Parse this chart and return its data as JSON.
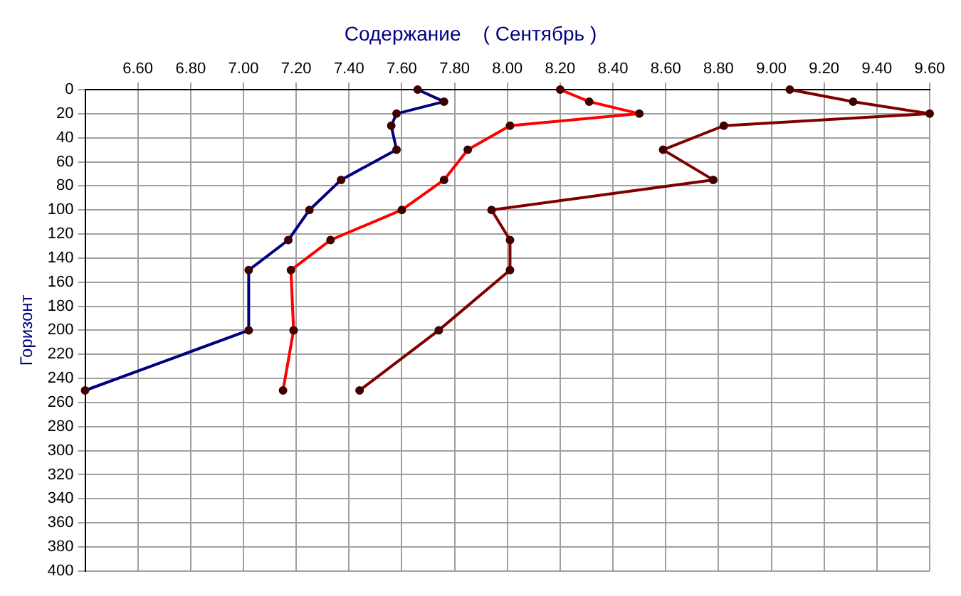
{
  "chart_data": {
    "type": "line",
    "title": "Содержание    ( Сентябрь )",
    "ylabel": "Горизонт",
    "xlim": [
      6.4,
      9.6
    ],
    "xticks": [
      {
        "value": 6.6,
        "label": "6.60"
      },
      {
        "value": 6.8,
        "label": "6.80"
      },
      {
        "value": 7.0,
        "label": "7.00"
      },
      {
        "value": 7.2,
        "label": "7.20"
      },
      {
        "value": 7.4,
        "label": "7.40"
      },
      {
        "value": 7.6,
        "label": "7.60"
      },
      {
        "value": 7.8,
        "label": "7.80"
      },
      {
        "value": 8.0,
        "label": "8.00"
      },
      {
        "value": 8.2,
        "label": "8.20"
      },
      {
        "value": 8.4,
        "label": "8.40"
      },
      {
        "value": 8.6,
        "label": "8.60"
      },
      {
        "value": 8.8,
        "label": "8.80"
      },
      {
        "value": 9.0,
        "label": "9.00"
      },
      {
        "value": 9.2,
        "label": "9.20"
      },
      {
        "value": 9.4,
        "label": "9.40"
      },
      {
        "value": 9.6,
        "label": "9.60"
      }
    ],
    "ylim": [
      400,
      0
    ],
    "yticks": [
      0,
      20,
      40,
      60,
      80,
      100,
      120,
      140,
      160,
      180,
      200,
      220,
      240,
      260,
      280,
      300,
      320,
      340,
      360,
      380,
      400
    ],
    "grid": true,
    "legend": false,
    "marker": "circle",
    "line_style": "solid",
    "series": [
      {
        "color": "#000080",
        "x": [
          7.66,
          7.76,
          7.58,
          7.56,
          7.58,
          7.37,
          7.25,
          7.17,
          7.02,
          7.02,
          6.4
        ],
        "values": [
          0,
          10,
          20,
          30,
          50,
          75,
          100,
          125,
          150,
          200,
          250
        ]
      },
      {
        "color": "#ff0000",
        "x": [
          8.2,
          8.31,
          8.5,
          8.01,
          7.85,
          7.76,
          7.6,
          7.33,
          7.18,
          7.19,
          7.15
        ],
        "values": [
          0,
          10,
          20,
          30,
          50,
          75,
          100,
          125,
          150,
          200,
          250
        ]
      },
      {
        "color": "#800000",
        "x": [
          9.07,
          9.31,
          9.6,
          8.82,
          8.59,
          8.78,
          7.94,
          8.01,
          8.01,
          7.74,
          7.44
        ],
        "values": [
          0,
          10,
          20,
          30,
          50,
          75,
          100,
          125,
          150,
          200,
          250
        ]
      }
    ]
  }
}
